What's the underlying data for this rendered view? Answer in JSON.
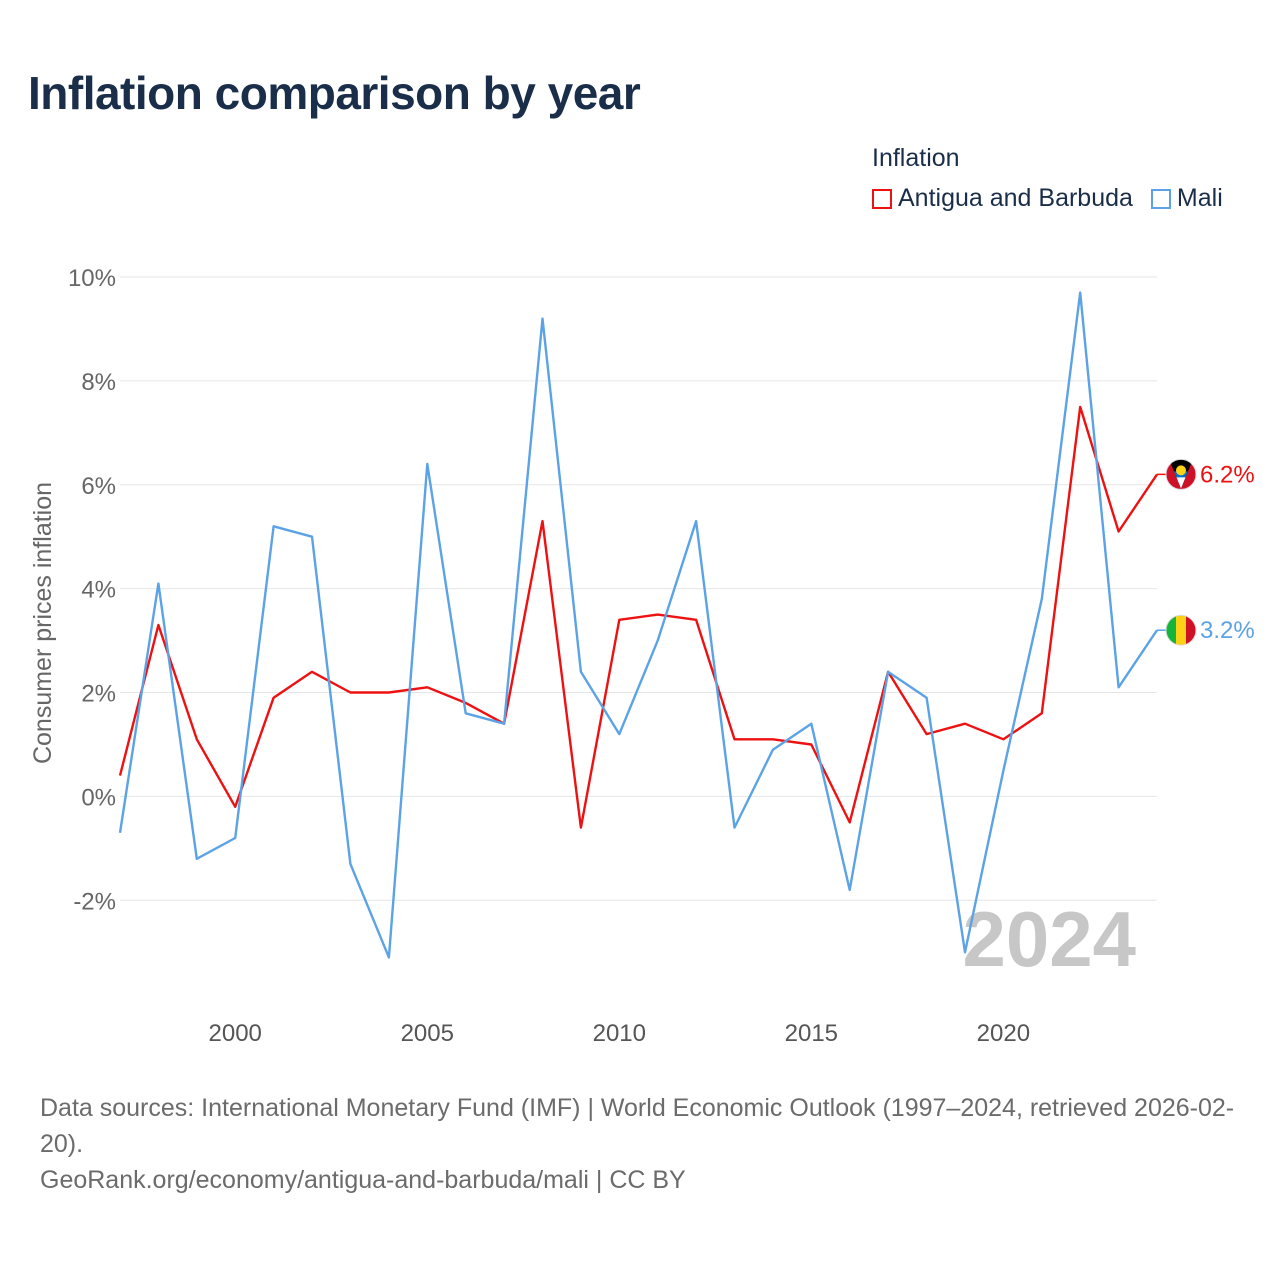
{
  "title": "Inflation comparison by year",
  "legend": {
    "title": "Inflation",
    "items": [
      {
        "label": "Antigua and Barbuda",
        "color": "#ee1111"
      },
      {
        "label": "Mali",
        "color": "#5ba3e6"
      }
    ]
  },
  "footer": {
    "sources": "Data sources: International Monetary Fund (IMF) | World Economic Outlook (1997–2024, retrieved 2026-02-20).",
    "link": "GeoRank.org/economy/antigua-and-barbuda/mali | CC BY"
  },
  "chart_data": {
    "type": "line",
    "title": "Inflation comparison by year",
    "xlabel": "",
    "ylabel": "Consumer prices inflation",
    "x": [
      1997,
      1998,
      1999,
      2000,
      2001,
      2002,
      2003,
      2004,
      2005,
      2006,
      2007,
      2008,
      2009,
      2010,
      2011,
      2012,
      2013,
      2014,
      2015,
      2016,
      2017,
      2018,
      2019,
      2020,
      2021,
      2022,
      2023,
      2024
    ],
    "xlim": [
      1997,
      2024
    ],
    "ylim": [
      -3.9,
      10.0
    ],
    "x_ticks": [
      2000,
      2005,
      2010,
      2015,
      2020
    ],
    "x_tick_labels": [
      "2000",
      "2005",
      "2010",
      "2015",
      "2020"
    ],
    "y_ticks": [
      -2,
      0,
      2,
      4,
      6,
      8,
      10
    ],
    "y_tick_labels": [
      "-2%",
      "0%",
      "2%",
      "4%",
      "6%",
      "8%",
      "10%"
    ],
    "watermark_year": "2024",
    "grid": true,
    "legend_position": "top-right",
    "series": [
      {
        "name": "Antigua and Barbuda",
        "color": "#ee1111",
        "end_label": "6.2%",
        "values": [
          0.4,
          3.3,
          1.1,
          -0.2,
          1.9,
          2.4,
          2.0,
          2.0,
          2.1,
          1.8,
          1.4,
          5.3,
          -0.6,
          3.4,
          3.5,
          3.4,
          1.1,
          1.1,
          1.0,
          -0.5,
          2.4,
          1.2,
          1.4,
          1.1,
          1.6,
          7.5,
          5.1,
          6.2
        ]
      },
      {
        "name": "Mali",
        "color": "#5ba3e6",
        "end_label": "3.2%",
        "values": [
          -0.7,
          4.1,
          -1.2,
          -0.8,
          5.2,
          5.0,
          -1.3,
          -3.1,
          6.4,
          1.6,
          1.4,
          9.2,
          2.4,
          1.2,
          3.0,
          5.3,
          -0.6,
          0.9,
          1.4,
          -1.8,
          2.4,
          1.9,
          -3.0,
          0.5,
          3.8,
          9.7,
          2.1,
          3.2
        ]
      }
    ]
  }
}
